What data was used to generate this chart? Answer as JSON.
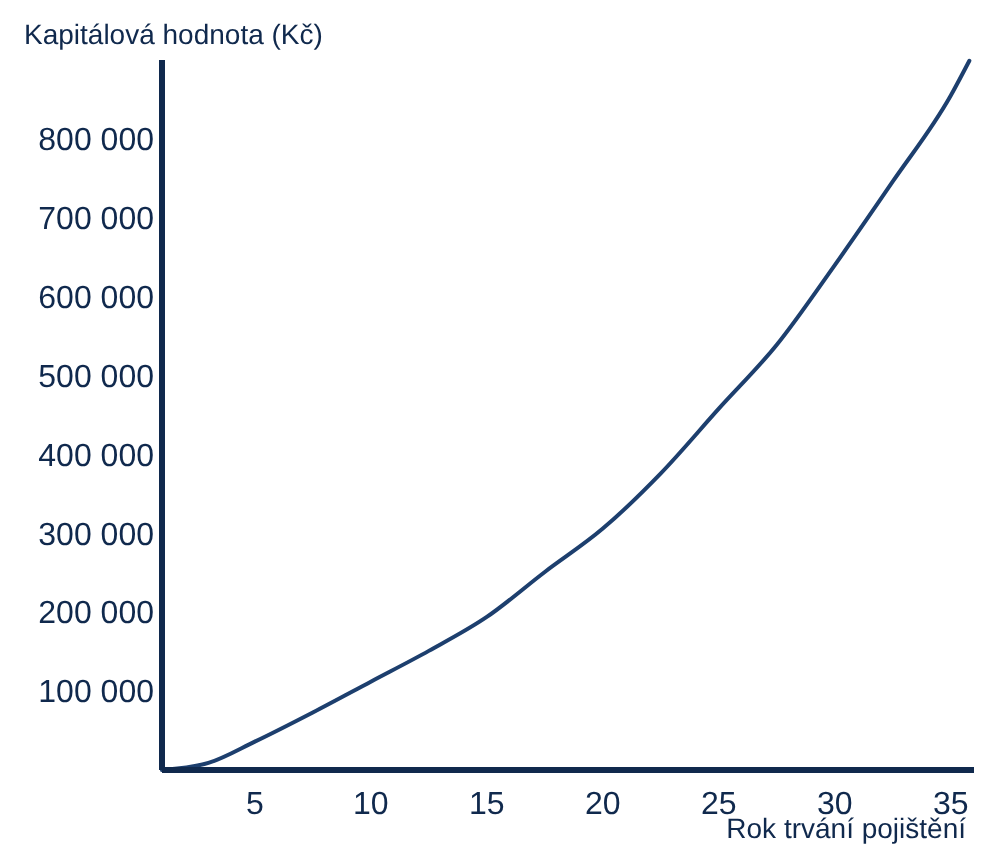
{
  "chart_data": {
    "type": "line",
    "ylabel": "Kapitálová hodnota (Kč)",
    "xlabel": "Rok trvání pojištění",
    "x": [
      1,
      3,
      5,
      7.5,
      10,
      12.5,
      15,
      17.5,
      20,
      22.5,
      25,
      27.5,
      30,
      32.5,
      35,
      35.8
    ],
    "series": [
      {
        "color": "#1d3f6e",
        "values": [
          0,
          9000,
          36000,
          73000,
          112000,
          151000,
          194000,
          251000,
          306000,
          376000,
          458000,
          539000,
          640000,
          746000,
          855000,
          899000
        ]
      }
    ],
    "xlim": [
      1,
      36
    ],
    "ylim": [
      0,
      900000
    ],
    "xticks": [
      5,
      10,
      15,
      20,
      25,
      30,
      35
    ],
    "yticks": [
      {
        "value": 100000,
        "label": "100 000"
      },
      {
        "value": 200000,
        "label": "200 000"
      },
      {
        "value": 300000,
        "label": "300 000"
      },
      {
        "value": 400000,
        "label": "400 000"
      },
      {
        "value": 500000,
        "label": "500 000"
      },
      {
        "value": 600000,
        "label": "600 000"
      },
      {
        "value": 700000,
        "label": "700 000"
      },
      {
        "value": 800000,
        "label": "800 000"
      }
    ],
    "grid": false,
    "marker": "none",
    "line_style": "solid"
  }
}
